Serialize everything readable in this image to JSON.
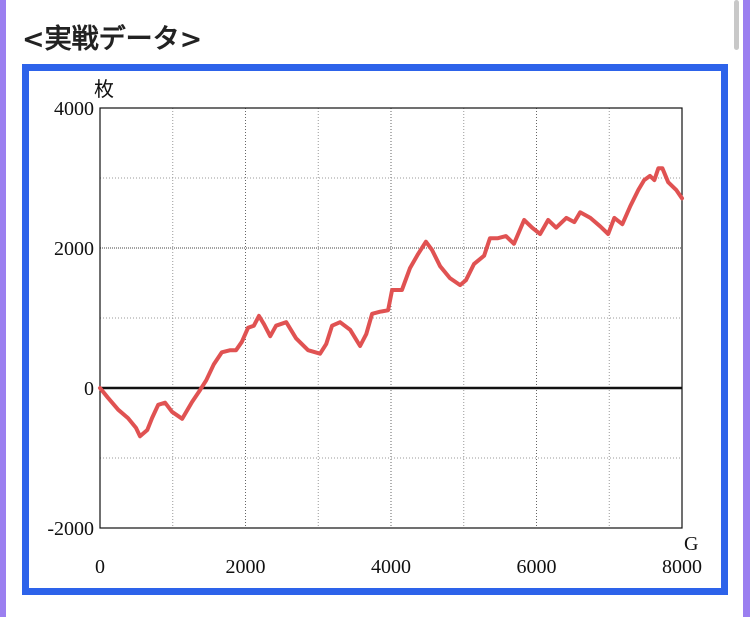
{
  "page_title": "<実戦データ>",
  "chart_data": {
    "type": "line",
    "ylabel": "枚",
    "xlabel": "G",
    "xlim": [
      0,
      8000
    ],
    "xticks": [
      0,
      2000,
      4000,
      6000,
      8000
    ],
    "minor_xticks": [
      1000,
      3000,
      5000,
      7000
    ],
    "ylim": [
      -2000,
      4000
    ],
    "yticks": [
      -2000,
      0,
      2000,
      4000
    ],
    "minor_yticks": [
      -1000,
      1000,
      3000
    ],
    "grid": true,
    "series": [
      {
        "color": "#e05252",
        "x": [
          0,
          110,
          250,
          385,
          495,
          550,
          650,
          715,
          800,
          895,
          990,
          1130,
          1265,
          1375,
          1460,
          1565,
          1675,
          1790,
          1870,
          1950,
          2035,
          2115,
          2185,
          2255,
          2340,
          2420,
          2560,
          2695,
          2860,
          3025,
          3110,
          3190,
          3300,
          3440,
          3575,
          3660,
          3740,
          3850,
          3960,
          4015,
          4150,
          4260,
          4370,
          4480,
          4565,
          4675,
          4810,
          4950,
          5030,
          5140,
          5280,
          5360,
          5470,
          5580,
          5690,
          5830,
          5940,
          6050,
          6160,
          6270,
          6410,
          6520,
          6600,
          6740,
          6875,
          6985,
          7070,
          7180,
          7290,
          7400,
          7480,
          7560,
          7620,
          7675,
          7730,
          7810,
          7920,
          8000
        ],
        "values": [
          0,
          -140,
          -310,
          -430,
          -570,
          -690,
          -600,
          -430,
          -240,
          -210,
          -340,
          -440,
          -200,
          -30,
          110,
          340,
          510,
          540,
          540,
          660,
          860,
          890,
          1030,
          910,
          740,
          890,
          940,
          710,
          540,
          490,
          630,
          890,
          940,
          830,
          600,
          770,
          1060,
          1090,
          1110,
          1400,
          1400,
          1710,
          1910,
          2090,
          1970,
          1740,
          1570,
          1470,
          1540,
          1770,
          1890,
          2140,
          2140,
          2170,
          2060,
          2400,
          2290,
          2200,
          2400,
          2290,
          2430,
          2370,
          2510,
          2430,
          2310,
          2200,
          2430,
          2340,
          2600,
          2830,
          2970,
          3030,
          2970,
          3140,
          3140,
          2940,
          2830,
          2710
        ]
      }
    ]
  }
}
